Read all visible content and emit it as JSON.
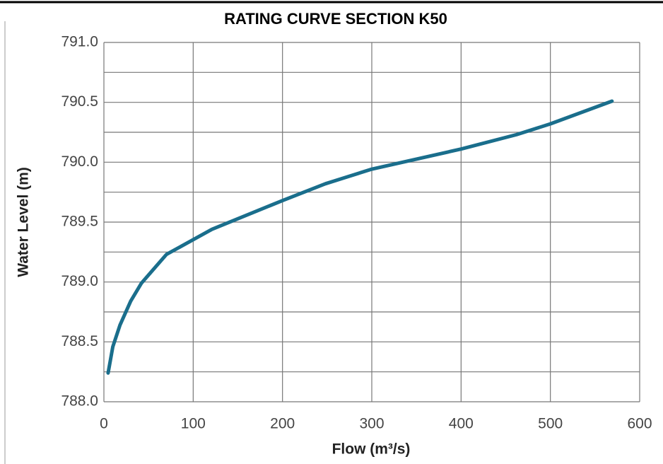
{
  "chart_data": {
    "type": "line",
    "title": "RATING CURVE SECTION K50",
    "x_label": "Flow (m³/s)",
    "y_label": "Water Level (m)",
    "series": [
      {
        "name": "Rating curve",
        "color": "#1a6e8c",
        "x": [
          4.7,
          10,
          18,
          30,
          42,
          70,
          121,
          200,
          248,
          299,
          400,
          462,
          500,
          569
        ],
        "values": [
          788.24,
          788.46,
          788.64,
          788.84,
          788.99,
          789.23,
          789.44,
          789.68,
          789.82,
          789.94,
          790.11,
          790.23,
          790.32,
          790.51
        ]
      }
    ],
    "xlim": [
      0,
      600
    ],
    "xticks": [
      0,
      100,
      200,
      300,
      400,
      500,
      600
    ],
    "ylim": [
      788.0,
      791.0
    ],
    "yticks": [
      {
        "value": 788.0,
        "label": "788.0"
      },
      {
        "value": 788.5,
        "label": "788.5"
      },
      {
        "value": 789.0,
        "label": "789.0"
      },
      {
        "value": 789.5,
        "label": "789.5"
      },
      {
        "value": 790.0,
        "label": "790.0"
      },
      {
        "value": 790.5,
        "label": "790.5"
      },
      {
        "value": 791.0,
        "label": "791.0"
      }
    ],
    "yminorticks": [
      788.25,
      788.75,
      789.25,
      789.75,
      790.25,
      790.75
    ],
    "grid": true
  }
}
